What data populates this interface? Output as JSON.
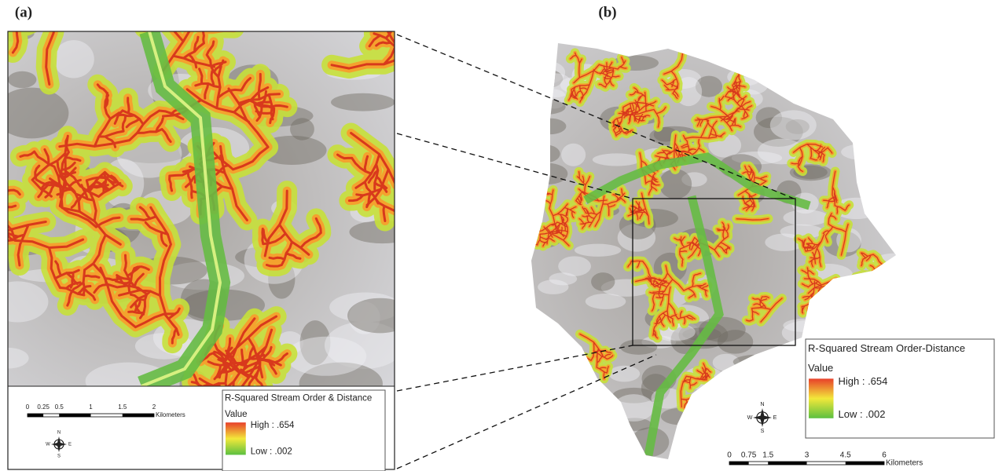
{
  "panels": [
    {
      "label": "(a)",
      "legend": {
        "title": "R-Squared Stream Order & Distance",
        "field": "Value",
        "high": "High : .654",
        "low": "Low : .002"
      },
      "scale": {
        "ticks": [
          "0",
          "0.25",
          "0.5",
          "1",
          "1.5",
          "2"
        ],
        "unit": "Kilometers"
      },
      "compass": {
        "n": "N",
        "s": "S",
        "e": "E",
        "w": "W"
      }
    },
    {
      "label": "(b)",
      "legend": {
        "title": "R-Squared Stream Order-Distance",
        "field": "Value",
        "high": "High : .654",
        "low": "Low : .002"
      },
      "scale": {
        "ticks": [
          "0",
          "0.75",
          "1.5",
          "3",
          "4.5",
          "6"
        ],
        "unit": "Kilometers"
      },
      "compass": {
        "n": "N",
        "s": "S",
        "e": "E",
        "w": "W"
      }
    }
  ]
}
